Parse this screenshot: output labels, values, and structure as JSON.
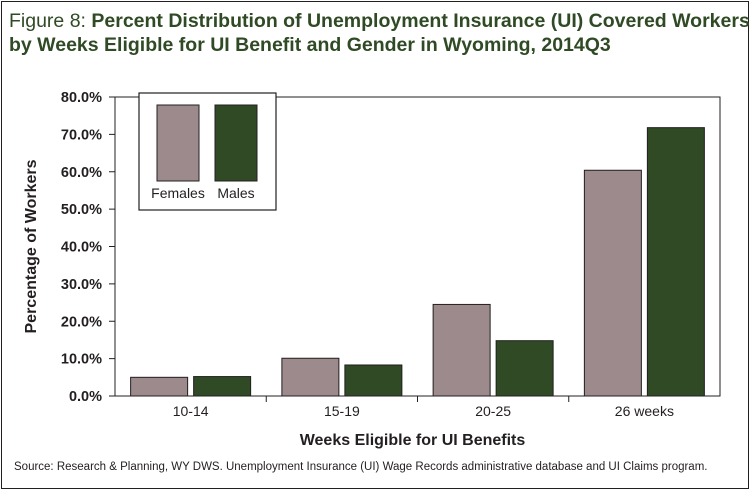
{
  "figure": {
    "title_prefix": "Figure 8: ",
    "title_line1": "Percent Distribution of Unemployment Insurance (UI) Covered Workers",
    "title_line2": "by Weeks Eligible for UI Benefit and Gender in Wyoming, 2014Q3",
    "source": "Source:  Research & Planning, WY DWS. Unemployment Insurance (UI) Wage Records administrative database and UI Claims program."
  },
  "chart_data": {
    "type": "bar",
    "title": "Percent Distribution of Unemployment Insurance (UI) Covered Workers by Weeks Eligible for UI Benefit and Gender in Wyoming, 2014Q3",
    "xlabel": "Weeks Eligible for UI Benefits",
    "ylabel": "Percentage of Workers",
    "categories": [
      "10-14",
      "15-19",
      "20-25",
      "26 weeks"
    ],
    "series": [
      {
        "name": "Females",
        "color": "#9d8a8d",
        "values": [
          5.0,
          10.1,
          24.5,
          60.4
        ]
      },
      {
        "name": "Males",
        "color": "#2f4a24",
        "values": [
          5.2,
          8.3,
          14.8,
          71.8
        ]
      }
    ],
    "ylim": [
      0,
      80
    ],
    "yticks": [
      "0.0%",
      "10.0%",
      "20.0%",
      "30.0%",
      "40.0%",
      "50.0%",
      "60.0%",
      "70.0%",
      "80.0%"
    ],
    "grid": false,
    "legend_position": "top-left"
  }
}
